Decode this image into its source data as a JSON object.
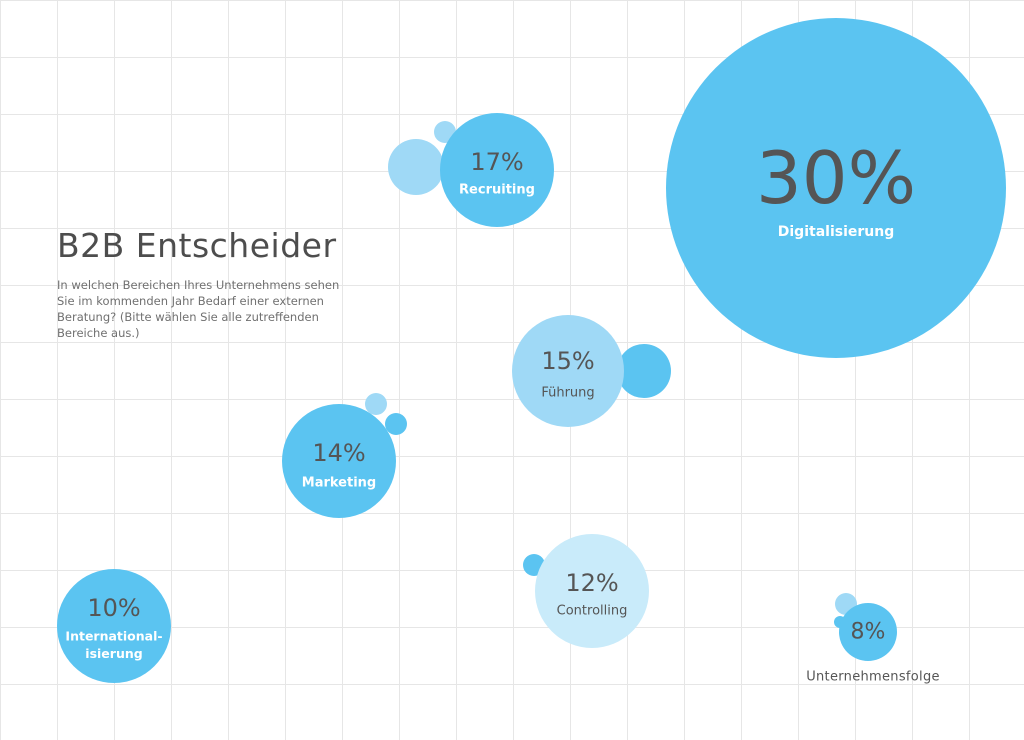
{
  "header": {
    "title": "B2B Entscheider",
    "subtitle": "In welchen Bereichen Ihres Unternehmens sehen Sie im kommenden Jahr Bedarf einer externen Beratung? (Bitte wählen Sie alle zutreffenden Bereiche aus.)"
  },
  "colors": {
    "bright": "#5bc4f1",
    "medium": "#9fd9f6",
    "light": "#c9ebfa",
    "text_dark": "#555555",
    "text_light": "#ffffff"
  },
  "chart_data": {
    "type": "bubble",
    "unit": "%",
    "series": [
      {
        "label": "Digitalisierung",
        "value": 30,
        "value_text": "30%",
        "tone": "bright"
      },
      {
        "label": "Recruiting",
        "value": 17,
        "value_text": "17%",
        "tone": "bright"
      },
      {
        "label": "Führung",
        "value": 15,
        "value_text": "15%",
        "tone": "medium"
      },
      {
        "label": "Marketing",
        "value": 14,
        "value_text": "14%",
        "tone": "bright"
      },
      {
        "label": "Controlling",
        "value": 12,
        "value_text": "12%",
        "tone": "light"
      },
      {
        "label": "International-isierung",
        "label_lines": [
          "International-",
          "isierung"
        ],
        "value": 10,
        "value_text": "10%",
        "tone": "bright"
      },
      {
        "label": "Unternehmensfolge",
        "value": 8,
        "value_text": "8%",
        "tone": "bright"
      }
    ]
  }
}
